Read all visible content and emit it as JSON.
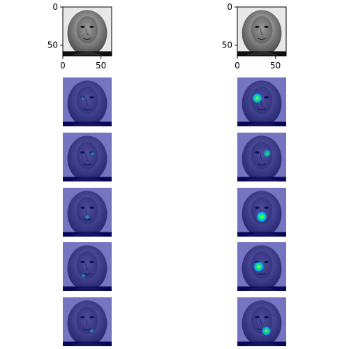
{
  "chart_data": [
    {
      "type": "image",
      "title": "",
      "subtitle": "",
      "xlabel": "",
      "ylabel": "",
      "x_ticks": [
        0,
        50
      ],
      "y_ticks": [
        0,
        50
      ],
      "xlim": [
        0,
        64
      ],
      "ylim": [
        64,
        0
      ],
      "image": "grayscale-face",
      "overlay": "none"
    },
    {
      "type": "image",
      "title": "",
      "subtitle": "",
      "xlabel": "",
      "ylabel": "",
      "x_ticks": [
        0,
        50
      ],
      "y_ticks": [
        0,
        50
      ],
      "xlim": [
        0,
        64
      ],
      "ylim": [
        64,
        0
      ],
      "image": "grayscale-face",
      "overlay": "none"
    }
  ],
  "overlay_rows": [
    {
      "row": 1,
      "left": {
        "overlay": "jet-heatmap",
        "hotspot": "left-eye",
        "intensity": 0.15
      },
      "right": {
        "overlay": "jet-heatmap",
        "hotspot": "left-eye",
        "intensity": 0.9
      }
    },
    {
      "row": 2,
      "left": {
        "overlay": "jet-heatmap",
        "hotspot": "right-eye",
        "intensity": 0.15
      },
      "right": {
        "overlay": "jet-heatmap",
        "hotspot": "right-eye",
        "intensity": 0.6
      }
    },
    {
      "row": 3,
      "left": {
        "overlay": "jet-heatmap",
        "hotspot": "nose",
        "intensity": 0.2
      },
      "right": {
        "overlay": "jet-heatmap",
        "hotspot": "nose",
        "intensity": 1.0
      }
    },
    {
      "row": 4,
      "left": {
        "overlay": "jet-heatmap",
        "hotspot": "left-mouth-corner",
        "intensity": 0.15
      },
      "right": {
        "overlay": "jet-heatmap",
        "hotspot": "left-cheek",
        "intensity": 0.95
      }
    },
    {
      "row": 5,
      "left": {
        "overlay": "jet-heatmap",
        "hotspot": "right-mouth-corner",
        "intensity": 0.15
      },
      "right": {
        "overlay": "jet-heatmap",
        "hotspot": "right-mouth-corner",
        "intensity": 0.8
      }
    }
  ],
  "colors": {
    "overlay_base": "#00009a",
    "hot": "#ffff00",
    "warm": "#00ff80",
    "cool": "#00c0ff"
  }
}
